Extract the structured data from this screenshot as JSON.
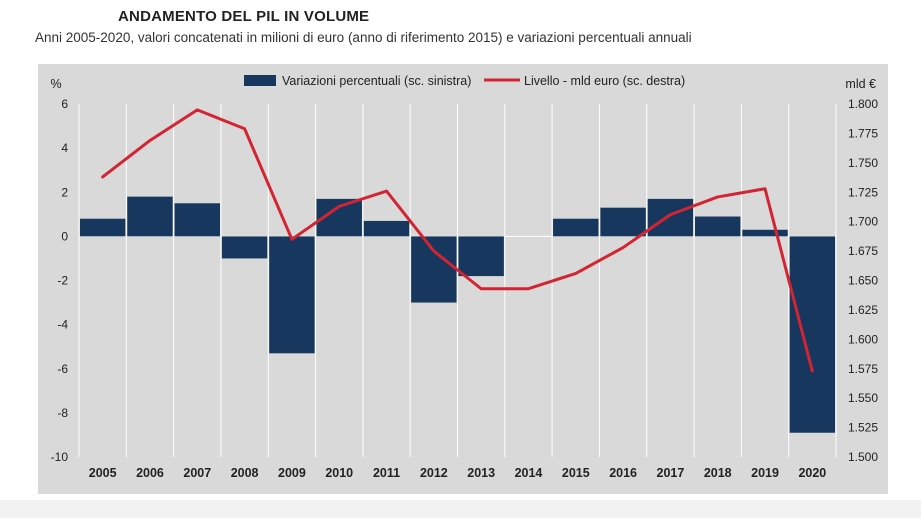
{
  "chart_data": {
    "type": "bar+line",
    "title": "ANDAMENTO DEL PIL IN VOLUME",
    "subtitle": "Anni 2005-2020, valori concatenati in milioni di euro (anno di riferimento 2015) e variazioni percentuali annuali",
    "categories": [
      "2005",
      "2006",
      "2007",
      "2008",
      "2009",
      "2010",
      "2011",
      "2012",
      "2013",
      "2014",
      "2015",
      "2016",
      "2017",
      "2018",
      "2019",
      "2020"
    ],
    "left_axis": {
      "unit": "%",
      "ylim": [
        -10,
        6
      ],
      "ticks": [
        "6",
        "4",
        "2",
        "0",
        "-2",
        "-4",
        "-6",
        "-8",
        "-10"
      ]
    },
    "right_axis": {
      "unit": "mld €",
      "ylim": [
        1.5,
        1.8
      ],
      "ticks": [
        "1.800",
        "1.775",
        "1.750",
        "1.725",
        "1.700",
        "1.675",
        "1.650",
        "1.625",
        "1.600",
        "1.575",
        "1.550",
        "1.525",
        "1.500"
      ]
    },
    "series": [
      {
        "name": "Variazioni percentuali (sc. sinistra)",
        "type": "bar",
        "axis": "left",
        "color": "#17375e",
        "values": [
          0.8,
          1.8,
          1.5,
          -1.0,
          -5.3,
          1.7,
          0.7,
          -3.0,
          -1.8,
          0.0,
          0.8,
          1.3,
          1.7,
          0.9,
          0.3,
          -8.9
        ]
      },
      {
        "name": "Livello - mld euro (sc. destra)",
        "type": "line",
        "axis": "right",
        "color": "#d32433",
        "values": [
          1.738,
          1.769,
          1.795,
          1.779,
          1.685,
          1.713,
          1.726,
          1.675,
          1.643,
          1.643,
          1.656,
          1.678,
          1.706,
          1.721,
          1.728,
          1.573
        ]
      }
    ],
    "grid": true,
    "legend_position": "top",
    "colors": {
      "plot_background": "#d9d9d9",
      "gridline": "#ffffff",
      "bars": "#17375e",
      "line": "#d32433"
    }
  }
}
